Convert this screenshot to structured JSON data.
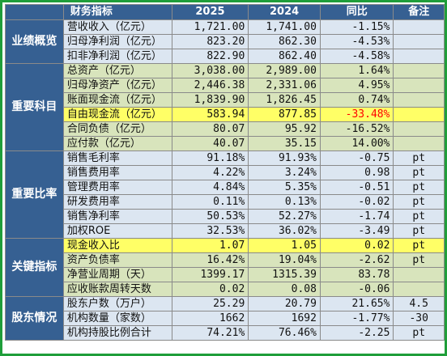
{
  "header": {
    "name": "财务指标",
    "col2025": "2025",
    "col2024": "2024",
    "yoy": "同比",
    "note": "备注"
  },
  "sections": [
    {
      "title": "业绩概览",
      "rows": [
        {
          "name": "营收收入（亿元）",
          "v2025": "1,721.00",
          "v2024": "1,741.00",
          "yoy": "-1.15%",
          "note": "",
          "style": "blue"
        },
        {
          "name": "归母净利润（亿元）",
          "v2025": "823.20",
          "v2024": "862.30",
          "yoy": "-4.53%",
          "note": "",
          "style": "blue"
        },
        {
          "name": "扣非净利润（亿元）",
          "v2025": "822.90",
          "v2024": "862.40",
          "yoy": "-4.58%",
          "note": "",
          "style": "blue"
        }
      ]
    },
    {
      "title": "重要科目",
      "rows": [
        {
          "name": "总资产（亿元）",
          "v2025": "3,038.00",
          "v2024": "2,989.00",
          "yoy": "1.64%",
          "note": "",
          "style": "green"
        },
        {
          "name": "归母净资产（亿元）",
          "v2025": "2,446.38",
          "v2024": "2,331.06",
          "yoy": "4.95%",
          "note": "",
          "style": "green"
        },
        {
          "name": "账面现金流（亿元）",
          "v2025": "1,839.90",
          "v2024": "1,826.45",
          "yoy": "0.74%",
          "note": "",
          "style": "green"
        },
        {
          "name": "自由现金流（亿元）",
          "v2025": "583.94",
          "v2024": "877.85",
          "yoy": "-33.48%",
          "note": "",
          "style": "hl",
          "yoy_color": "#ff0000"
        },
        {
          "name": "合同负债（亿元）",
          "v2025": "80.07",
          "v2024": "95.92",
          "yoy": "-16.52%",
          "note": "",
          "style": "green"
        },
        {
          "name": "应付款（亿元）",
          "v2025": "40.07",
          "v2024": "35.15",
          "yoy": "14.00%",
          "note": "",
          "style": "green"
        }
      ]
    },
    {
      "title": "重要比率",
      "rows": [
        {
          "name": "销售毛利率",
          "v2025": "91.18%",
          "v2024": "91.93%",
          "yoy": "-0.75",
          "note": "pt",
          "style": "blue"
        },
        {
          "name": "销售费用率",
          "v2025": "4.22%",
          "v2024": "3.24%",
          "yoy": "0.98",
          "note": "pt",
          "style": "blue"
        },
        {
          "name": "管理费用率",
          "v2025": "4.84%",
          "v2024": "5.35%",
          "yoy": "-0.51",
          "note": "pt",
          "style": "blue"
        },
        {
          "name": "研发费用率",
          "v2025": "0.11%",
          "v2024": "0.13%",
          "yoy": "-0.02",
          "note": "pt",
          "style": "blue"
        },
        {
          "name": "销售净利率",
          "v2025": "50.53%",
          "v2024": "52.27%",
          "yoy": "-1.74",
          "note": "pt",
          "style": "blue"
        },
        {
          "name": "加权ROE",
          "v2025": "32.53%",
          "v2024": "36.02%",
          "yoy": "-3.49",
          "note": "pt",
          "style": "blue"
        }
      ]
    },
    {
      "title": "关键指标",
      "rows": [
        {
          "name": "现金收入比",
          "v2025": "1.07",
          "v2024": "1.05",
          "yoy": "0.02",
          "note": "pt",
          "style": "hl"
        },
        {
          "name": "资产负债率",
          "v2025": "16.42%",
          "v2024": "19.04%",
          "yoy": "-2.62",
          "note": "pt",
          "style": "green"
        },
        {
          "name": "净营业周期（天）",
          "v2025": "1399.17",
          "v2024": "1315.39",
          "yoy": "83.78",
          "note": "",
          "style": "green"
        },
        {
          "name": "应收账款周转天数",
          "v2025": "0.02",
          "v2024": "0.08",
          "yoy": "-0.06",
          "note": "",
          "style": "green"
        }
      ]
    },
    {
      "title": "股东情况",
      "rows": [
        {
          "name": "股东户数（万户）",
          "v2025": "25.29",
          "v2024": "20.79",
          "yoy": "21.65%",
          "note": "4.5",
          "style": "blue"
        },
        {
          "name": "机构数量（家数）",
          "v2025": "1662",
          "v2024": "1692",
          "yoy": "-1.77%",
          "note": "-30",
          "style": "blue"
        },
        {
          "name": "机构持股比例合计",
          "v2025": "74.21%",
          "v2024": "76.46%",
          "yoy": "-2.25",
          "note": "pt",
          "style": "blue"
        }
      ]
    }
  ]
}
